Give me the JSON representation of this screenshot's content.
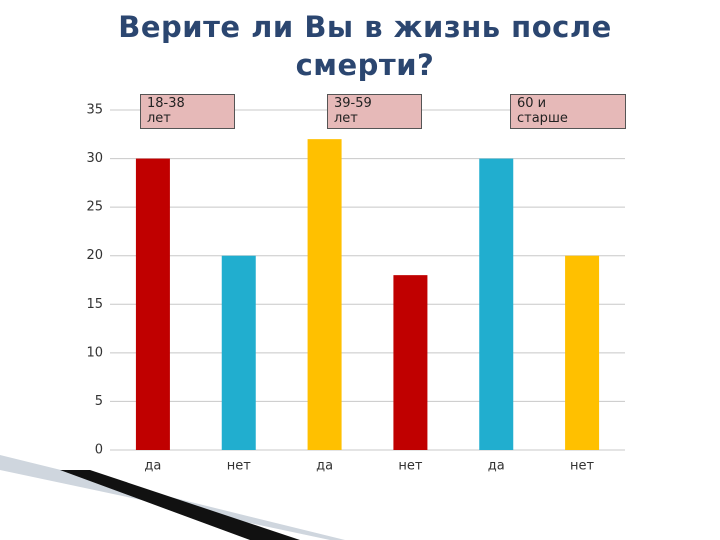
{
  "chart_data": {
    "type": "bar",
    "title": "Верите ли Вы в жизнь после смерти?",
    "categories": [
      "да",
      "нет",
      "да",
      "нет",
      "да",
      "нет"
    ],
    "values": [
      30,
      20,
      32,
      18,
      30,
      20
    ],
    "colors": [
      "#c00000",
      "#21aecf",
      "#ffc000",
      "#c00000",
      "#21aecf",
      "#ffc000"
    ],
    "annotations": [
      "18-38 лет",
      "39-59 лет",
      "60 и старше"
    ],
    "ylim": [
      0,
      35
    ],
    "yticks": [
      0,
      5,
      10,
      15,
      20,
      25,
      30,
      35
    ],
    "grid": true
  }
}
